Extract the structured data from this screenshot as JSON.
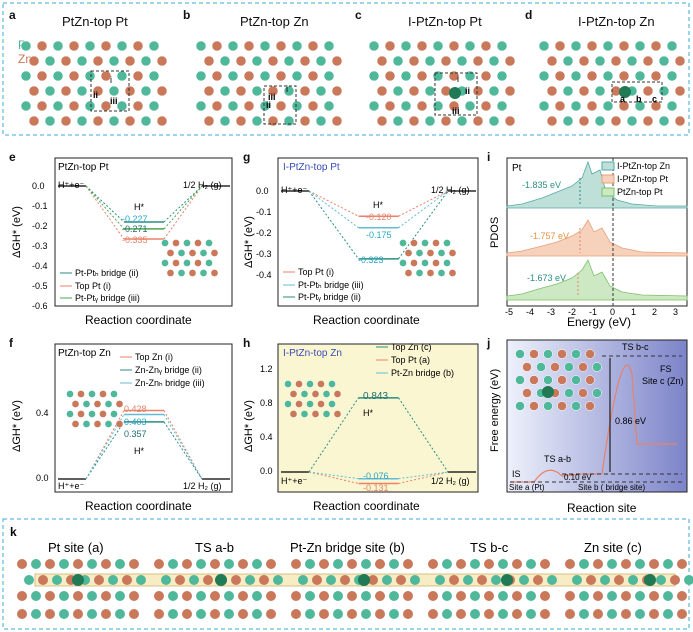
{
  "colors": {
    "pt": "#4fb89a",
    "zn": "#c9785a",
    "dash": "#3aa9d9",
    "orange": "#e8826a",
    "teal": "#2a8e83",
    "cyan": "#63bcd6",
    "green": "#4ca54c"
  },
  "row_top": {
    "labels": [
      "a",
      "b",
      "c",
      "d"
    ],
    "titles": [
      "PtZn-top Pt",
      "PtZn-top Zn",
      "I-PtZn-top Pt",
      "I-PtZn-top Zn"
    ],
    "legend": {
      "pt": "Pt",
      "zn": "Zn"
    },
    "site_marks": {
      "a": [
        "i",
        "ii",
        "iii"
      ],
      "b": [
        "i",
        "ii",
        "iii"
      ],
      "c": [
        "i",
        "ii",
        "iii"
      ],
      "d": [
        "a",
        "b",
        "c"
      ]
    }
  },
  "panel_e": {
    "label": "e",
    "title": "PtZn-top Pt",
    "ylabel": "ΔGH* (eV)",
    "xlabel": "Reaction coordinate",
    "left": "H⁺+e⁻",
    "right": "1/2 H₂ (g)",
    "mid": "H*",
    "yticks": [
      "0.0",
      "-0.1",
      "-0.2",
      "-0.3",
      "-0.4",
      "-0.5",
      "-0.6"
    ],
    "values": [
      "-0.227",
      "-0.271",
      "-0.335"
    ],
    "legend": [
      "Pt-Ptₕ bridge (ii)",
      "Top Pt (i)",
      "Pt-Ptᵧ bridge (iii)"
    ]
  },
  "panel_g": {
    "label": "g",
    "title": "I-PtZn-top Pt",
    "ylabel": "ΔGH* (eV)",
    "xlabel": "Reaction coordinate",
    "left": "H⁺+e⁻",
    "right": "1/2 H₂ (g)",
    "mid": "H*",
    "yticks": [
      "0.0",
      "-0.1",
      "-0.2",
      "-0.3",
      "-0.4"
    ],
    "values": [
      "-0.120",
      "-0.175",
      "-0.323"
    ],
    "legend": [
      "Top Pt (i)",
      "Pt-Ptₕ bridge (iii)",
      "Pt-Ptᵧ bridge (ii)"
    ]
  },
  "panel_i": {
    "label": "i",
    "ylabel": "PDOS",
    "xlabel": "Energy (eV)",
    "element": "Pt",
    "legend": [
      "I-PtZn-top Zn",
      "I-PtZn-top Pt",
      "PtZn-top Pt"
    ],
    "centers": [
      "-1.835 eV",
      "-1.757 eV",
      "-1.673 eV"
    ],
    "xticks": [
      "-5",
      "-4",
      "-3",
      "-2",
      "-1",
      "0",
      "1",
      "2",
      "3"
    ]
  },
  "panel_f": {
    "label": "f",
    "title": "PtZn-top Zn",
    "ylabel": "ΔGH* (eV)",
    "xlabel": "Reaction coordinate",
    "left": "H⁺+e⁻",
    "right": "1/2 H₂ (g)",
    "mid": "H*",
    "yticks": [
      "0.4",
      "0.0"
    ],
    "values": [
      "0.428",
      "0.403",
      "0.357"
    ],
    "legend": [
      "Top Zn (i)",
      "Zn-Znᵧ bridge (ii)",
      "Zn-Znₕ bridge (iii)"
    ]
  },
  "panel_h": {
    "label": "h",
    "title": "I-PtZn-top Zn",
    "ylabel": "ΔGH* (eV)",
    "xlabel": "Reaction coordinate",
    "left": "H⁺+e⁻",
    "right": "1/2 H₂ (g)",
    "mid": "H*",
    "yticks": [
      "1.2",
      "0.8",
      "0.4",
      "0.0"
    ],
    "values": [
      "0.843",
      "-0.076",
      "-0.131"
    ],
    "legend": [
      "Top Zn (c)",
      "Top Pt (a)",
      "Pt-Zn bridge (b)"
    ]
  },
  "panel_j": {
    "label": "j",
    "ylabel": "Free energy (eV)",
    "xlabel": "Reaction site",
    "ts_bc": "TS b-c",
    "ts_ab": "TS a-b",
    "fs": "FS",
    "site_c": "Site c (Zn)",
    "is": "IS",
    "e1": "0.86 eV",
    "e2": "0.10 eV",
    "site_a": "Site a (Pt)",
    "site_b": "Site b ( bridge site)"
  },
  "panel_k": {
    "label": "k",
    "titles": [
      "Pt site (a)",
      "TS a-b",
      "Pt-Zn bridge site (b)",
      "TS b-c",
      "Zn site (c)"
    ]
  },
  "chart_data": [
    {
      "type": "line",
      "title": "PtZn-top Pt",
      "ylabel": "ΔGH* (eV)",
      "xlabel": "Reaction coordinate",
      "ylim": [
        -0.6,
        0.05
      ],
      "categories": [
        "H⁺+e⁻",
        "H*",
        "1/2 H₂ (g)"
      ],
      "series": [
        {
          "name": "Pt-Ptₕ bridge (ii)",
          "values": [
            0,
            -0.227,
            0
          ]
        },
        {
          "name": "Top Pt (i)",
          "values": [
            0,
            -0.335,
            0
          ]
        },
        {
          "name": "Pt-Ptᵧ bridge (iii)",
          "values": [
            0,
            -0.271,
            0
          ]
        }
      ]
    },
    {
      "type": "line",
      "title": "I-PtZn-top Pt",
      "ylabel": "ΔGH* (eV)",
      "xlabel": "Reaction coordinate",
      "ylim": [
        -0.4,
        0.05
      ],
      "categories": [
        "H⁺+e⁻",
        "H*",
        "1/2 H₂ (g)"
      ],
      "series": [
        {
          "name": "Top Pt (i)",
          "values": [
            0,
            -0.12,
            0
          ]
        },
        {
          "name": "Pt-Ptₕ bridge (iii)",
          "values": [
            0,
            -0.175,
            0
          ]
        },
        {
          "name": "Pt-Ptᵧ bridge (ii)",
          "values": [
            0,
            -0.323,
            0
          ]
        }
      ]
    },
    {
      "type": "line",
      "title": "PtZn-top Zn",
      "ylabel": "ΔGH* (eV)",
      "xlabel": "Reaction coordinate",
      "ylim": [
        -0.05,
        0.7
      ],
      "categories": [
        "H⁺+e⁻",
        "H*",
        "1/2 H₂ (g)"
      ],
      "series": [
        {
          "name": "Top Zn (i)",
          "values": [
            0,
            0.428,
            0
          ]
        },
        {
          "name": "Zn-Znᵧ bridge (ii)",
          "values": [
            0,
            0.357,
            0
          ]
        },
        {
          "name": "Zn-Znₕ bridge (iii)",
          "values": [
            0,
            0.403,
            0
          ]
        }
      ]
    },
    {
      "type": "line",
      "title": "I-PtZn-top Zn",
      "ylabel": "ΔGH* (eV)",
      "xlabel": "Reaction coordinate",
      "ylim": [
        -0.2,
        1.4
      ],
      "categories": [
        "H⁺+e⁻",
        "H*",
        "1/2 H₂ (g)"
      ],
      "series": [
        {
          "name": "Top Zn (c)",
          "values": [
            0,
            0.843,
            0
          ]
        },
        {
          "name": "Top Pt (a)",
          "values": [
            0,
            -0.131,
            0
          ]
        },
        {
          "name": "Pt-Zn bridge (b)",
          "values": [
            0,
            -0.076,
            0
          ]
        }
      ]
    },
    {
      "type": "area",
      "xlabel": "Energy (eV)",
      "ylabel": "PDOS",
      "xlim": [
        -5,
        3.5
      ],
      "series": [
        {
          "name": "I-PtZn-top Zn",
          "d_band_center": -1.835
        },
        {
          "name": "I-PtZn-top Pt",
          "d_band_center": -1.757
        },
        {
          "name": "PtZn-top Pt",
          "d_band_center": -1.673
        }
      ]
    },
    {
      "type": "line",
      "xlabel": "Reaction site",
      "ylabel": "Free energy (eV)",
      "categories": [
        "IS",
        "TS a-b",
        "Site b",
        "TS b-c",
        "FS"
      ],
      "barriers": [
        {
          "name": "TS a-b",
          "value": 0.1
        },
        {
          "name": "TS b-c",
          "value": 0.86
        }
      ]
    }
  ]
}
